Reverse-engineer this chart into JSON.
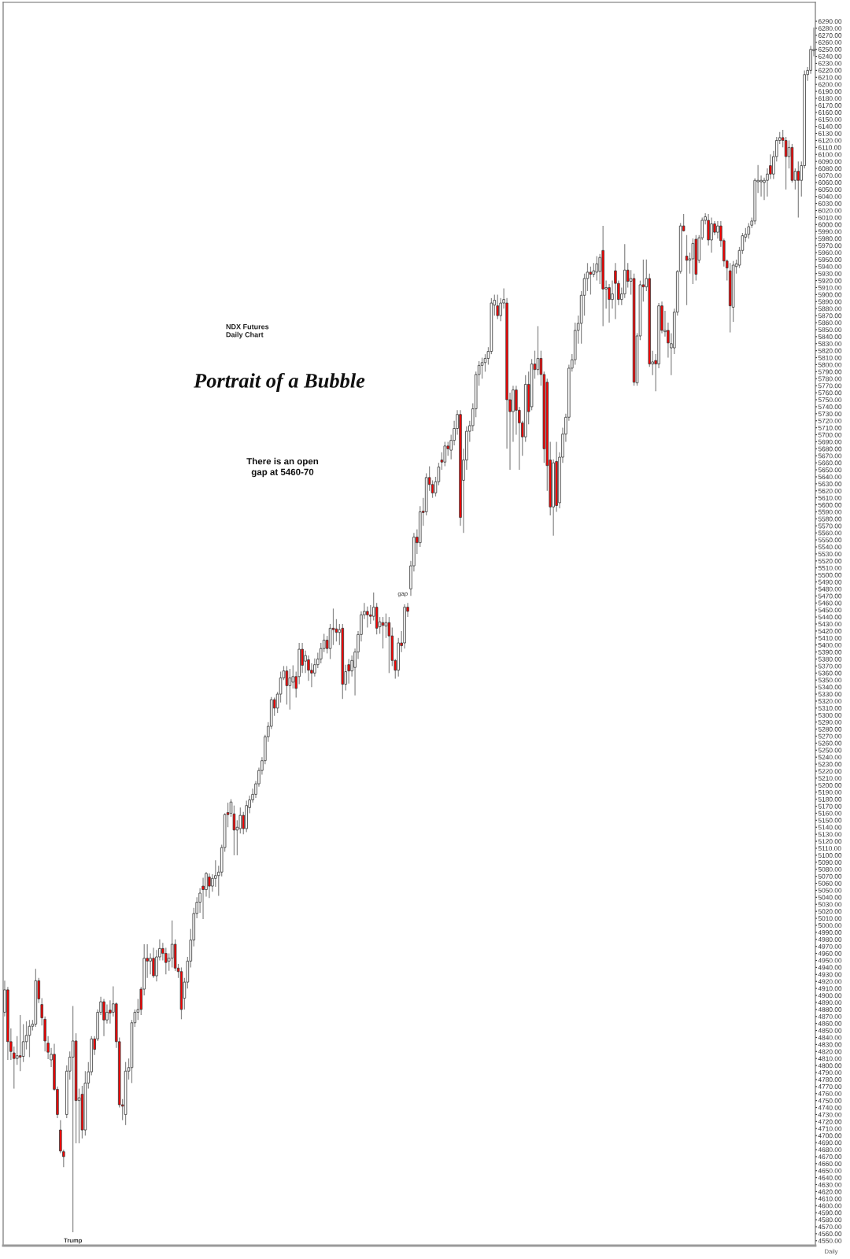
{
  "chart_data": {
    "type": "candlestick",
    "title": "Portrait of a Bubble",
    "subtitle": "NDX Futures\nDaily Chart",
    "annotations": [
      "There is an open\ngap at 5460-70",
      "gap",
      "Trump",
      "Daily"
    ],
    "categories": [
      null,
      null,
      null,
      null,
      null,
      null,
      null,
      null,
      null,
      null,
      null,
      null,
      null,
      null,
      null,
      null,
      null,
      null,
      null,
      null,
      null,
      null,
      null,
      null,
      null,
      null,
      null,
      null,
      null,
      null,
      null,
      null,
      null,
      null,
      null,
      null,
      null,
      null,
      null,
      null,
      null,
      null,
      null,
      null,
      null,
      null,
      null,
      null,
      null,
      null,
      null,
      null,
      null,
      null,
      null,
      null,
      null,
      null,
      null,
      null,
      null,
      null,
      null,
      null,
      null,
      null,
      null,
      null,
      null,
      null,
      null,
      null,
      null,
      null,
      null,
      null,
      null,
      null,
      null,
      null,
      null,
      null,
      null,
      null,
      null,
      null,
      null,
      null,
      null,
      null,
      null,
      null,
      null,
      null,
      null,
      null,
      null,
      null,
      null,
      null,
      null,
      null,
      null,
      null,
      null,
      null,
      null,
      null,
      null,
      null,
      null,
      null,
      null,
      null,
      null,
      null,
      null,
      null,
      null,
      null,
      null,
      null,
      null,
      null,
      null,
      null,
      null,
      null,
      null,
      null,
      null,
      null,
      null,
      null,
      null,
      null,
      null,
      null,
      null,
      null,
      null,
      null,
      null,
      null,
      null,
      null,
      null,
      null,
      null,
      null,
      null,
      null,
      null,
      null,
      null,
      null,
      null,
      null,
      null,
      null,
      null,
      null,
      null,
      null,
      null,
      null,
      null,
      null,
      null,
      null,
      null,
      null,
      null,
      null,
      null,
      null,
      null,
      null,
      null,
      null,
      null,
      null,
      null,
      null,
      null,
      null,
      null,
      null,
      null,
      null,
      null,
      null,
      null,
      null,
      null,
      null,
      null,
      null,
      null,
      null,
      null,
      null,
      null,
      null,
      null,
      null,
      null,
      null,
      null,
      null,
      null,
      null,
      null,
      null,
      null,
      null,
      null,
      null,
      null,
      null,
      null,
      null,
      null,
      null,
      null,
      null,
      null,
      null,
      null,
      null,
      null,
      null,
      null,
      null,
      null,
      null,
      null,
      null,
      null,
      null,
      null,
      null,
      null,
      null,
      null,
      null,
      null,
      null,
      null,
      null,
      null,
      null,
      null,
      null,
      null,
      null,
      null,
      null,
      null,
      null,
      null,
      null
    ],
    "ohlc": [
      [
        4876,
        4921,
        4870,
        4908
      ],
      [
        4908,
        4912,
        4808,
        4834
      ],
      [
        4834,
        4853,
        4808,
        4820
      ],
      [
        4818,
        4827,
        4767,
        4810
      ],
      [
        4810,
        4842,
        4801,
        4814
      ],
      [
        4814,
        4872,
        4792,
        4812
      ],
      [
        4813,
        4859,
        4805,
        4834
      ],
      [
        4834,
        4863,
        4823,
        4843
      ],
      [
        4843,
        4865,
        4812,
        4856
      ],
      [
        4856,
        4865,
        4850,
        4859
      ],
      [
        4859,
        4938,
        4855,
        4921
      ],
      [
        4921,
        4925,
        4889,
        4895
      ],
      [
        4887,
        4896,
        4857,
        4868
      ],
      [
        4866,
        4870,
        4820,
        4835
      ],
      [
        4832,
        4842,
        4809,
        4819
      ],
      [
        4808,
        4825,
        4798,
        4816
      ],
      [
        4816,
        4831,
        4764,
        4766
      ],
      [
        4766,
        4770,
        4725,
        4730
      ],
      [
        4708,
        4722,
        4675,
        4678
      ],
      [
        4677,
        4680,
        4655,
        4670
      ],
      [
        4730,
        4800,
        4725,
        4792
      ],
      [
        4792,
        4820,
        4780,
        4812
      ],
      [
        4812,
        4885,
        4562,
        4835
      ],
      [
        4835,
        4846,
        4689,
        4750
      ],
      [
        4750,
        4767,
        4689,
        4754
      ],
      [
        4759,
        4771,
        4696,
        4708
      ],
      [
        4708,
        4792,
        4700,
        4775
      ],
      [
        4775,
        4805,
        4767,
        4791
      ],
      [
        4791,
        4842,
        4786,
        4838
      ],
      [
        4838,
        4842,
        4815,
        4823
      ],
      [
        4838,
        4880,
        4835,
        4876
      ],
      [
        4876,
        4898,
        4872,
        4891
      ],
      [
        4891,
        4895,
        4842,
        4865
      ],
      [
        4865,
        4887,
        4860,
        4876
      ],
      [
        4879,
        4893,
        4860,
        4875
      ],
      [
        4876,
        4913,
        4870,
        4888
      ],
      [
        4888,
        4890,
        4825,
        4834
      ],
      [
        4834,
        4840,
        4740,
        4744
      ],
      [
        4744,
        4752,
        4722,
        4742
      ],
      [
        4730,
        4805,
        4715,
        4792
      ],
      [
        4792,
        4810,
        4780,
        4797
      ],
      [
        4797,
        4865,
        4775,
        4861
      ],
      [
        4861,
        4880,
        4855,
        4876
      ],
      [
        4876,
        4895,
        4865,
        4880
      ],
      [
        4909,
        4912,
        4872,
        4880
      ],
      [
        4909,
        4973,
        4900,
        4953
      ],
      [
        4953,
        4973,
        4925,
        4949
      ],
      [
        4949,
        4960,
        4930,
        4953
      ],
      [
        4953,
        4968,
        4925,
        4928
      ],
      [
        4928,
        4965,
        4920,
        4955
      ],
      [
        4955,
        4980,
        4950,
        4967
      ],
      [
        4967,
        4975,
        4950,
        4960
      ],
      [
        4960,
        4968,
        4930,
        4947
      ],
      [
        4949,
        4960,
        4935,
        4953
      ],
      [
        4953,
        5007,
        4940,
        4973
      ],
      [
        4973,
        4980,
        4935,
        4939
      ],
      [
        4939,
        4945,
        4925,
        4934
      ],
      [
        4934,
        4940,
        4866,
        4880
      ],
      [
        4896,
        4925,
        4880,
        4919
      ],
      [
        4919,
        4955,
        4910,
        4949
      ],
      [
        4949,
        4995,
        4940,
        4979
      ],
      [
        4979,
        5025,
        4970,
        5017
      ],
      [
        5017,
        5040,
        5010,
        5033
      ],
      [
        5033,
        5053,
        5018,
        5046
      ],
      [
        5056,
        5068,
        5009,
        5051
      ],
      [
        5051,
        5076,
        5041,
        5074
      ],
      [
        5069,
        5074,
        5039,
        5056
      ],
      [
        5056,
        5073,
        5048,
        5067
      ],
      [
        5067,
        5093,
        5055,
        5071
      ],
      [
        5071,
        5085,
        5042,
        5076
      ],
      [
        5076,
        5115,
        5070,
        5111
      ],
      [
        5111,
        5160,
        5105,
        5158
      ],
      [
        5161,
        5175,
        5140,
        5158
      ],
      [
        5160,
        5180,
        5155,
        5176
      ],
      [
        5159,
        5171,
        5100,
        5136
      ],
      [
        5136,
        5150,
        5100,
        5140
      ],
      [
        5138,
        5168,
        5131,
        5157
      ],
      [
        5157,
        5162,
        5130,
        5138
      ],
      [
        5138,
        5178,
        5133,
        5171
      ],
      [
        5168,
        5185,
        5160,
        5179
      ],
      [
        5179,
        5195,
        5175,
        5187
      ],
      [
        5187,
        5206,
        5182,
        5202
      ],
      [
        5202,
        5225,
        5198,
        5221
      ],
      [
        5221,
        5240,
        5215,
        5235
      ],
      [
        5235,
        5272,
        5230,
        5269
      ],
      [
        5269,
        5290,
        5262,
        5284
      ],
      [
        5284,
        5326,
        5280,
        5322
      ],
      [
        5322,
        5325,
        5299,
        5310
      ],
      [
        5310,
        5333,
        5303,
        5330
      ],
      [
        5330,
        5362,
        5318,
        5353
      ],
      [
        5353,
        5370,
        5350,
        5363
      ],
      [
        5363,
        5370,
        5315,
        5342
      ],
      [
        5342,
        5366,
        5308,
        5353
      ],
      [
        5347,
        5371,
        5338,
        5355
      ],
      [
        5355,
        5362,
        5325,
        5338
      ],
      [
        5355,
        5403,
        5344,
        5394
      ],
      [
        5394,
        5403,
        5360,
        5371
      ],
      [
        5377,
        5392,
        5360,
        5385
      ],
      [
        5379,
        5385,
        5349,
        5364
      ],
      [
        5364,
        5374,
        5340,
        5360
      ],
      [
        5360,
        5381,
        5355,
        5372
      ],
      [
        5372,
        5389,
        5367,
        5380
      ],
      [
        5380,
        5403,
        5374,
        5395
      ],
      [
        5395,
        5416,
        5390,
        5407
      ],
      [
        5407,
        5413,
        5388,
        5395
      ],
      [
        5395,
        5430,
        5380,
        5424
      ],
      [
        5424,
        5452,
        5400,
        5422
      ],
      [
        5423,
        5437,
        5405,
        5418
      ],
      [
        5418,
        5430,
        5400,
        5422
      ],
      [
        5424,
        5430,
        5323,
        5344
      ],
      [
        5344,
        5372,
        5335,
        5362
      ],
      [
        5372,
        5380,
        5345,
        5363
      ],
      [
        5363,
        5385,
        5355,
        5378
      ],
      [
        5368,
        5395,
        5328,
        5390
      ],
      [
        5390,
        5420,
        5380,
        5415
      ],
      [
        5415,
        5448,
        5405,
        5443
      ],
      [
        5443,
        5460,
        5437,
        5448
      ],
      [
        5448,
        5455,
        5425,
        5443
      ],
      [
        5443,
        5457,
        5430,
        5441
      ],
      [
        5441,
        5475,
        5435,
        5454
      ],
      [
        5454,
        5460,
        5415,
        5424
      ],
      [
        5426,
        5440,
        5416,
        5433
      ],
      [
        5432,
        5440,
        5395,
        5428
      ],
      [
        5427,
        5445,
        5410,
        5432
      ],
      [
        5432,
        5440,
        5360,
        5413
      ],
      [
        5413,
        5425,
        5370,
        5378
      ],
      [
        5378,
        5380,
        5352,
        5364
      ],
      [
        5364,
        5410,
        5355,
        5403
      ],
      [
        5403,
        5420,
        5390,
        5399
      ],
      [
        5403,
        5458,
        5395,
        5454
      ],
      [
        5454,
        5460,
        5440,
        5448
      ],
      [
        5480,
        5520,
        5470,
        5513
      ],
      [
        5513,
        5560,
        5505,
        5554
      ],
      [
        5554,
        5565,
        5530,
        5546
      ],
      [
        5546,
        5598,
        5540,
        5590
      ],
      [
        5591,
        5610,
        5570,
        5589
      ],
      [
        5590,
        5645,
        5585,
        5639
      ],
      [
        5639,
        5655,
        5620,
        5629
      ],
      [
        5629,
        5635,
        5610,
        5617
      ],
      [
        5617,
        5640,
        5612,
        5633
      ],
      [
        5633,
        5660,
        5628,
        5654
      ],
      [
        5664,
        5675,
        5650,
        5661
      ],
      [
        5661,
        5690,
        5655,
        5684
      ],
      [
        5684,
        5690,
        5670,
        5680
      ],
      [
        5678,
        5700,
        5665,
        5692
      ],
      [
        5692,
        5720,
        5685,
        5709
      ],
      [
        5709,
        5735,
        5700,
        5729
      ],
      [
        5729,
        5735,
        5570,
        5582
      ],
      [
        5635,
        5680,
        5560,
        5664
      ],
      [
        5664,
        5712,
        5650,
        5705
      ],
      [
        5705,
        5720,
        5690,
        5713
      ],
      [
        5713,
        5745,
        5705,
        5737
      ],
      [
        5737,
        5790,
        5725,
        5786
      ],
      [
        5786,
        5805,
        5770,
        5799
      ],
      [
        5799,
        5810,
        5780,
        5803
      ],
      [
        5803,
        5815,
        5790,
        5809
      ],
      [
        5809,
        5825,
        5800,
        5819
      ],
      [
        5819,
        5895,
        5815,
        5888
      ],
      [
        5885,
        5900,
        5870,
        5892
      ],
      [
        5884,
        5900,
        5865,
        5870
      ],
      [
        5870,
        5895,
        5862,
        5888
      ],
      [
        5888,
        5909,
        5880,
        5893
      ],
      [
        5888,
        5895,
        5680,
        5750
      ],
      [
        5750,
        5760,
        5650,
        5733
      ],
      [
        5733,
        5770,
        5690,
        5764
      ],
      [
        5764,
        5770,
        5700,
        5735
      ],
      [
        5735,
        5740,
        5650,
        5717
      ],
      [
        5717,
        5720,
        5670,
        5697
      ],
      [
        5697,
        5785,
        5690,
        5772
      ],
      [
        5772,
        5790,
        5715,
        5733
      ],
      [
        5740,
        5808,
        5735,
        5801
      ],
      [
        5801,
        5820,
        5780,
        5793
      ],
      [
        5793,
        5855,
        5785,
        5809
      ],
      [
        5809,
        5820,
        5770,
        5786
      ],
      [
        5786,
        5790,
        5660,
        5680
      ],
      [
        5775,
        5780,
        5620,
        5656
      ],
      [
        5664,
        5690,
        5585,
        5597
      ],
      [
        5597,
        5665,
        5556,
        5660
      ],
      [
        5662,
        5690,
        5590,
        5599
      ],
      [
        5603,
        5675,
        5595,
        5668
      ],
      [
        5668,
        5710,
        5660,
        5701
      ],
      [
        5701,
        5730,
        5690,
        5725
      ],
      [
        5725,
        5800,
        5720,
        5795
      ],
      [
        5795,
        5815,
        5790,
        5807
      ],
      [
        5807,
        5860,
        5800,
        5849
      ],
      [
        5849,
        5870,
        5830,
        5859
      ],
      [
        5859,
        5905,
        5830,
        5899
      ],
      [
        5899,
        5930,
        5870,
        5923
      ],
      [
        5923,
        5945,
        5905,
        5932
      ],
      [
        5932,
        5940,
        5900,
        5929
      ],
      [
        5929,
        5945,
        5925,
        5934
      ],
      [
        5932,
        5955,
        5920,
        5944
      ],
      [
        5933,
        5958,
        5915,
        5953
      ],
      [
        5963,
        5998,
        5855,
        5908
      ],
      [
        5908,
        5920,
        5880,
        5910
      ],
      [
        5910,
        5915,
        5860,
        5893
      ],
      [
        5893,
        5920,
        5880,
        5901
      ],
      [
        5934,
        5945,
        5865,
        5916
      ],
      [
        5916,
        5920,
        5885,
        5893
      ],
      [
        5893,
        5910,
        5885,
        5901
      ],
      [
        5901,
        5972,
        5895,
        5935
      ],
      [
        5935,
        5945,
        5910,
        5919
      ],
      [
        5919,
        5935,
        5900,
        5923
      ],
      [
        5923,
        5930,
        5770,
        5775
      ],
      [
        5774,
        5845,
        5770,
        5841
      ],
      [
        5841,
        5920,
        5835,
        5914
      ],
      [
        5914,
        5950,
        5890,
        5911
      ],
      [
        5911,
        5950,
        5905,
        5923
      ],
      [
        5923,
        5930,
        5797,
        5801
      ],
      [
        5801,
        5820,
        5785,
        5804
      ],
      [
        5806,
        5815,
        5762,
        5801
      ],
      [
        5801,
        5888,
        5795,
        5884
      ],
      [
        5884,
        5890,
        5845,
        5849
      ],
      [
        5847,
        5877,
        5840,
        5849
      ],
      [
        5849,
        5860,
        5810,
        5831
      ],
      [
        5824,
        5845,
        5785,
        5830
      ],
      [
        5824,
        5880,
        5815,
        5875
      ],
      [
        5875,
        5935,
        5870,
        5933
      ],
      [
        5933,
        6002,
        5930,
        5998
      ],
      [
        5998,
        6015,
        5990,
        5991
      ],
      [
        5955,
        5985,
        5885,
        5949
      ],
      [
        5949,
        5960,
        5930,
        5951
      ],
      [
        5951,
        5980,
        5915,
        5973
      ],
      [
        5979,
        5985,
        5920,
        5929
      ],
      [
        5949,
        5985,
        5945,
        5981
      ],
      [
        5981,
        6010,
        5978,
        6006
      ],
      [
        6006,
        6016,
        6000,
        6011
      ],
      [
        6006,
        6015,
        5970,
        5978
      ],
      [
        5978,
        6010,
        5960,
        6001
      ],
      [
        6001,
        6005,
        5985,
        5989
      ],
      [
        5989,
        6005,
        5980,
        5998
      ],
      [
        5998,
        6005,
        5968,
        5977
      ],
      [
        5977,
        5980,
        5940,
        5948
      ],
      [
        5948,
        5950,
        5920,
        5938
      ],
      [
        5934,
        5945,
        5846,
        5884
      ],
      [
        5882,
        5948,
        5861,
        5942
      ],
      [
        5940,
        5950,
        5930,
        5944
      ],
      [
        5942,
        5968,
        5938,
        5963
      ],
      [
        5963,
        5988,
        5958,
        5984
      ],
      [
        5982,
        5995,
        5975,
        5986
      ],
      [
        5986,
        6002,
        5980,
        5997
      ],
      [
        5999,
        6010,
        5995,
        6005
      ],
      [
        6005,
        6066,
        6000,
        6063
      ],
      [
        6061,
        6085,
        6045,
        6063
      ],
      [
        6061,
        6070,
        6040,
        6063
      ],
      [
        6060,
        6067,
        6035,
        6063
      ],
      [
        6063,
        6080,
        6040,
        6072
      ],
      [
        6084,
        6100,
        6065,
        6072
      ],
      [
        6072,
        6105,
        6065,
        6097
      ],
      [
        6097,
        6125,
        6090,
        6120
      ],
      [
        6120,
        6132,
        6115,
        6124
      ],
      [
        6124,
        6135,
        6110,
        6120
      ],
      [
        6120,
        6125,
        6050,
        6097
      ],
      [
        6097,
        6120,
        6080,
        6110
      ],
      [
        6110,
        6115,
        6060,
        6063
      ],
      [
        6063,
        6080,
        6050,
        6076
      ],
      [
        6076,
        6090,
        6010,
        6063
      ],
      [
        6063,
        6090,
        6040,
        6084
      ],
      [
        6084,
        6220,
        6080,
        6214
      ],
      [
        6214,
        6225,
        6205,
        6220
      ],
      [
        6220,
        6255,
        6215,
        6250
      ],
      [
        6248,
        6281,
        6240,
        6250
      ]
    ],
    "colors": [
      "#ffffff",
      "#ff0000",
      "#ff0000",
      "#ff0000",
      "#ffffff",
      "#ff0000",
      "#ffffff",
      "#ffffff",
      "#ffffff",
      "#ffffff",
      "#ffffff",
      "#ff0000",
      "#ff0000",
      "#ff0000",
      "#ff0000",
      "#ffffff",
      "#ff0000",
      "#ff0000",
      "#ff0000",
      "#ff0000",
      "#ffffff",
      "#ffffff",
      "#ffffff",
      "#ff0000",
      "#ffffff",
      "#ff0000",
      "#ffffff",
      "#ffffff",
      "#ffffff",
      "#ff0000",
      "#ffffff",
      "#ffffff",
      "#ff0000",
      "#ffffff",
      "#ff0000",
      "#ffffff",
      "#ff0000",
      "#ff0000",
      "#ff0000",
      "#ffffff",
      "#ffffff",
      "#ffffff",
      "#ffffff",
      "#ffffff",
      "#ff0000",
      "#ffffff",
      "#ff0000",
      "#ffffff",
      "#ff0000",
      "#ffffff",
      "#ffffff",
      "#ff0000",
      "#ff0000",
      "#ffffff",
      "#ffffff",
      "#ff0000",
      "#ff0000",
      "#ff0000",
      "#ffffff",
      "#ffffff",
      "#ffffff",
      "#ffffff",
      "#ffffff",
      "#ffffff",
      "#ff0000",
      "#ffffff",
      "#ff0000",
      "#ffffff",
      "#ffffff",
      "#ffffff",
      "#ffffff",
      "#ffffff",
      "#ff0000",
      "#ffffff",
      "#ff0000",
      "#ffffff",
      "#ffffff",
      "#ff0000",
      "#ffffff",
      "#ffffff",
      "#ffffff",
      "#ffffff",
      "#ffffff",
      "#ffffff",
      "#ffffff",
      "#ffffff",
      "#ffffff",
      "#ff0000",
      "#ffffff",
      "#ffffff",
      "#ffffff",
      "#ff0000",
      "#ffffff",
      "#ffffff",
      "#ff0000",
      "#ffffff",
      "#ff0000",
      "#ffffff",
      "#ff0000",
      "#ff0000",
      "#ffffff",
      "#ffffff",
      "#ffffff",
      "#ffffff",
      "#ff0000",
      "#ffffff",
      "#ff0000",
      "#ff0000",
      "#ffffff",
      "#ff0000",
      "#ffffff",
      "#ff0000",
      "#ffffff",
      "#ffffff",
      "#ffffff",
      "#ffffff",
      "#ffffff",
      "#ff0000",
      "#ff0000",
      "#ffffff",
      "#ff0000",
      "#ffffff",
      "#ff0000",
      "#ffffff",
      "#ff0000",
      "#ff0000",
      "#ff0000",
      "#ffffff",
      "#ff0000",
      "#ffffff",
      "#ff0000",
      "#ffffff",
      "#ffffff",
      "#ff0000",
      "#ffffff",
      "#ff0000",
      "#ffffff",
      "#ff0000",
      "#ff0000",
      "#ffffff",
      "#ffffff",
      "#ff0000",
      "#ffffff",
      "#ff0000",
      "#ffffff",
      "#ffffff",
      "#ffffff",
      "#ff0000",
      "#ffffff",
      "#ffffff",
      "#ffffff",
      "#ffffff",
      "#ffffff",
      "#ffffff",
      "#ffffff",
      "#ffffff",
      "#ffffff",
      "#ffffff",
      "#ffffff",
      "#ff0000",
      "#ffffff",
      "#ffffff",
      "#ff0000",
      "#ff0000",
      "#ffffff",
      "#ff0000",
      "#ff0000",
      "#ff0000",
      "#ffffff",
      "#ff0000",
      "#ffffff",
      "#ff0000",
      "#ffffff",
      "#ff0000",
      "#ff0000",
      "#ff0000",
      "#ff0000",
      "#ffffff",
      "#ff0000",
      "#ffffff",
      "#ffffff",
      "#ffffff",
      "#ffffff",
      "#ffffff",
      "#ffffff",
      "#ffffff",
      "#ffffff",
      "#ffffff",
      "#ffffff",
      "#ff0000",
      "#ffffff",
      "#ffffff",
      "#ffffff",
      "#ff0000",
      "#ffffff",
      "#ff0000",
      "#ffffff",
      "#ff0000",
      "#ff0000",
      "#ffffff",
      "#ffffff",
      "#ff0000",
      "#ffffff",
      "#ff0000",
      "#ffffff",
      "#ffffff",
      "#ff0000",
      "#ffffff",
      "#ff0000",
      "#ffffff",
      "#ff0000",
      "#ffffff",
      "#ff0000",
      "#ffffff",
      "#ff0000",
      "#ffffff",
      "#ffffff",
      "#ffffff",
      "#ffffff",
      "#ff0000",
      "#ff0000",
      "#ffffff",
      "#ffffff",
      "#ff0000",
      "#ffffff",
      "#ffffff",
      "#ffffff",
      "#ff0000",
      "#ffffff",
      "#ff0000",
      "#ffffff",
      "#ff0000",
      "#ff0000",
      "#ff0000",
      "#ff0000",
      "#ffffff",
      "#ffffff",
      "#ffffff",
      "#ffffff",
      "#ffffff",
      "#ffffff",
      "#ffffff",
      "#ffffff",
      "#ffffff",
      "#ffffff",
      "#ffffff",
      "#ffffff",
      "#ff0000",
      "#ffffff",
      "#ffffff",
      "#ffffff",
      "#ff0000",
      "#ff0000",
      "#ffffff",
      "#ff0000",
      "#ffffff",
      "#ff0000",
      "#ffffff",
      "#ffffff",
      "#ffffff",
      "#ffffff",
      "#ffffff"
    ],
    "ylim": [
      4543,
      6317
    ],
    "yticks": [
      {
        "value": 4550,
        "label": "4550.00"
      },
      {
        "value": 4560,
        "label": "4560.00"
      },
      {
        "value": 4570,
        "label": "4570.00"
      },
      {
        "value": 4580,
        "label": "4580.00"
      },
      {
        "value": 4590,
        "label": "4590.00"
      },
      {
        "value": 4600,
        "label": "4600.00"
      },
      {
        "value": 4610,
        "label": "4610.00"
      },
      {
        "value": 4620,
        "label": "4620.00"
      },
      {
        "value": 4630,
        "label": "4630.00"
      },
      {
        "value": 4640,
        "label": "4640.00"
      },
      {
        "value": 4650,
        "label": "4650.00"
      },
      {
        "value": 4660,
        "label": "4660.00"
      },
      {
        "value": 4670,
        "label": "4670.00"
      },
      {
        "value": 4680,
        "label": "4680.00"
      },
      {
        "value": 4690,
        "label": "4690.00"
      },
      {
        "value": 4700,
        "label": "4700.00"
      },
      {
        "value": 4710,
        "label": "4710.00"
      },
      {
        "value": 4720,
        "label": "4720.00"
      },
      {
        "value": 4730,
        "label": "4730.00"
      },
      {
        "value": 4740,
        "label": "4740.00"
      },
      {
        "value": 4750,
        "label": "4750.00"
      },
      {
        "value": 4760,
        "label": "4760.00"
      },
      {
        "value": 4770,
        "label": "4770.00"
      },
      {
        "value": 4780,
        "label": "4780.00"
      },
      {
        "value": 4790,
        "label": "4790.00"
      },
      {
        "value": 4800,
        "label": "4800.00"
      },
      {
        "value": 4810,
        "label": "4810.00"
      },
      {
        "value": 4820,
        "label": "4820.00"
      },
      {
        "value": 4830,
        "label": "4830.00"
      },
      {
        "value": 4840,
        "label": "4840.00"
      },
      {
        "value": 4850,
        "label": "4850.00"
      },
      {
        "value": 4860,
        "label": "4860.00"
      },
      {
        "value": 4870,
        "label": "4870.00"
      },
      {
        "value": 4880,
        "label": "4880.00"
      },
      {
        "value": 4890,
        "label": "4890.00"
      },
      {
        "value": 4900,
        "label": "4900.00"
      },
      {
        "value": 4910,
        "label": "4910.00"
      },
      {
        "value": 4920,
        "label": "4920.00"
      },
      {
        "value": 4930,
        "label": "4930.00"
      },
      {
        "value": 4940,
        "label": "4940.00"
      },
      {
        "value": 4950,
        "label": "4950.00"
      },
      {
        "value": 4960,
        "label": "4960.00"
      },
      {
        "value": 4970,
        "label": "4970.00"
      },
      {
        "value": 4980,
        "label": "4980.00"
      },
      {
        "value": 4990,
        "label": "4990.00"
      },
      {
        "value": 5000,
        "label": "5000.00"
      },
      {
        "value": 5010,
        "label": "5010.00"
      },
      {
        "value": 5020,
        "label": "5020.00"
      },
      {
        "value": 5030,
        "label": "5030.00"
      },
      {
        "value": 5040,
        "label": "5040.00"
      },
      {
        "value": 5050,
        "label": "5050.00"
      },
      {
        "value": 5060,
        "label": "5060.00"
      },
      {
        "value": 5070,
        "label": "5070.00"
      },
      {
        "value": 5080,
        "label": "5080.00"
      },
      {
        "value": 5090,
        "label": "5090.00"
      },
      {
        "value": 5100,
        "label": "5100.00"
      },
      {
        "value": 5110,
        "label": "5110.00"
      },
      {
        "value": 5120,
        "label": "5120.00"
      },
      {
        "value": 5130,
        "label": "5130.00"
      },
      {
        "value": 5140,
        "label": "5140.00"
      },
      {
        "value": 5150,
        "label": "5150.00"
      },
      {
        "value": 5160,
        "label": "5160.00"
      },
      {
        "value": 5170,
        "label": "5170.00"
      },
      {
        "value": 5180,
        "label": "5180.00"
      },
      {
        "value": 5190,
        "label": "5190.00"
      },
      {
        "value": 5200,
        "label": "5200.00"
      },
      {
        "value": 5210,
        "label": "5210.00"
      },
      {
        "value": 5220,
        "label": "5220.00"
      },
      {
        "value": 5230,
        "label": "5230.00"
      },
      {
        "value": 5240,
        "label": "5240.00"
      },
      {
        "value": 5250,
        "label": "5250.00"
      },
      {
        "value": 5260,
        "label": "5260.00"
      },
      {
        "value": 5270,
        "label": "5270.00"
      },
      {
        "value": 5280,
        "label": "5280.00"
      },
      {
        "value": 5290,
        "label": "5290.00"
      },
      {
        "value": 5300,
        "label": "5300.00"
      },
      {
        "value": 5310,
        "label": "5310.00"
      },
      {
        "value": 5320,
        "label": "5320.00"
      },
      {
        "value": 5330,
        "label": "5330.00"
      },
      {
        "value": 5340,
        "label": "5340.00"
      },
      {
        "value": 5350,
        "label": "5350.00"
      },
      {
        "value": 5360,
        "label": "5360.00"
      },
      {
        "value": 5370,
        "label": "5370.00"
      },
      {
        "value": 5380,
        "label": "5380.00"
      },
      {
        "value": 5390,
        "label": "5390.00"
      },
      {
        "value": 5400,
        "label": "5400.00"
      },
      {
        "value": 5410,
        "label": "5410.00"
      },
      {
        "value": 5420,
        "label": "5420.00"
      },
      {
        "value": 5430,
        "label": "5430.00"
      },
      {
        "value": 5440,
        "label": "5440.00"
      },
      {
        "value": 5450,
        "label": "5450.00"
      },
      {
        "value": 5460,
        "label": "5460.00"
      },
      {
        "value": 5470,
        "label": "5470.00"
      },
      {
        "value": 5480,
        "label": "5480.00"
      },
      {
        "value": 5490,
        "label": "5490.00"
      },
      {
        "value": 5500,
        "label": "5500.00"
      },
      {
        "value": 5510,
        "label": "5510.00"
      },
      {
        "value": 5520,
        "label": "5520.00"
      },
      {
        "value": 5530,
        "label": "5530.00"
      },
      {
        "value": 5540,
        "label": "5540.00"
      },
      {
        "value": 5550,
        "label": "5550.00"
      },
      {
        "value": 5560,
        "label": "5560.00"
      },
      {
        "value": 5570,
        "label": "5570.00"
      },
      {
        "value": 5580,
        "label": "5580.00"
      },
      {
        "value": 5590,
        "label": "5590.00"
      },
      {
        "value": 5600,
        "label": "5600.00"
      },
      {
        "value": 5610,
        "label": "5610.00"
      },
      {
        "value": 5620,
        "label": "5620.00"
      },
      {
        "value": 5630,
        "label": "5630.00"
      },
      {
        "value": 5640,
        "label": "5640.00"
      },
      {
        "value": 5650,
        "label": "5650.00"
      },
      {
        "value": 5660,
        "label": "5660.00"
      },
      {
        "value": 5670,
        "label": "5670.00"
      },
      {
        "value": 5680,
        "label": "5680.00"
      },
      {
        "value": 5690,
        "label": "5690.00"
      },
      {
        "value": 5700,
        "label": "5700.00"
      },
      {
        "value": 5710,
        "label": "5710.00"
      },
      {
        "value": 5720,
        "label": "5720.00"
      },
      {
        "value": 5730,
        "label": "5730.00"
      },
      {
        "value": 5740,
        "label": "5740.00"
      },
      {
        "value": 5750,
        "label": "5750.00"
      },
      {
        "value": 5760,
        "label": "5760.00"
      },
      {
        "value": 5770,
        "label": "5770.00"
      },
      {
        "value": 5780,
        "label": "5780.00"
      },
      {
        "value": 5790,
        "label": "5790.00"
      },
      {
        "value": 5800,
        "label": "5800.00"
      },
      {
        "value": 5810,
        "label": "5810.00"
      },
      {
        "value": 5820,
        "label": "5820.00"
      },
      {
        "value": 5830,
        "label": "5830.00"
      },
      {
        "value": 5840,
        "label": "5840.00"
      },
      {
        "value": 5850,
        "label": "5850.00"
      },
      {
        "value": 5860,
        "label": "5860.00"
      },
      {
        "value": 5870,
        "label": "5870.00"
      },
      {
        "value": 5880,
        "label": "5880.00"
      },
      {
        "value": 5890,
        "label": "5890.00"
      },
      {
        "value": 5900,
        "label": "5900.00"
      },
      {
        "value": 5910,
        "label": "5910.00"
      },
      {
        "value": 5920,
        "label": "5920.00"
      },
      {
        "value": 5930,
        "label": "5930.00"
      },
      {
        "value": 5940,
        "label": "5940.00"
      },
      {
        "value": 5950,
        "label": "5950.00"
      },
      {
        "value": 5960,
        "label": "5960.00"
      },
      {
        "value": 5970,
        "label": "5970.00"
      },
      {
        "value": 5980,
        "label": "5980.00"
      },
      {
        "value": 5990,
        "label": "5990.00"
      },
      {
        "value": 6000,
        "label": "6000.00"
      },
      {
        "value": 6010,
        "label": "6010.00"
      },
      {
        "value": 6020,
        "label": "6020.00"
      },
      {
        "value": 6030,
        "label": "6030.00"
      },
      {
        "value": 6040,
        "label": "6040.00"
      },
      {
        "value": 6050,
        "label": "6050.00"
      },
      {
        "value": 6060,
        "label": "6060.00"
      },
      {
        "value": 6070,
        "label": "6070.00"
      },
      {
        "value": 6080,
        "label": "6080.00"
      },
      {
        "value": 6090,
        "label": "6090.00"
      },
      {
        "value": 6100,
        "label": "6100.00"
      },
      {
        "value": 6110,
        "label": "6110.00"
      },
      {
        "value": 6120,
        "label": "6120.00"
      },
      {
        "value": 6130,
        "label": "6130.00"
      },
      {
        "value": 6140,
        "label": "6140.00"
      },
      {
        "value": 6150,
        "label": "6150.00"
      },
      {
        "value": 6160,
        "label": "6160.00"
      },
      {
        "value": 6170,
        "label": "6170.00"
      },
      {
        "value": 6180,
        "label": "6180.00"
      },
      {
        "value": 6190,
        "label": "6190.00"
      },
      {
        "value": 6200,
        "label": "6200.00"
      },
      {
        "value": 6210,
        "label": "6210.00"
      },
      {
        "value": 6220,
        "label": "6220.00"
      },
      {
        "value": 6230,
        "label": "6230.00"
      },
      {
        "value": 6240,
        "label": "6240.00"
      },
      {
        "value": 6250,
        "label": "6250.00"
      },
      {
        "value": 6260,
        "label": "6260.00"
      },
      {
        "value": 6270,
        "label": "6270.00"
      },
      {
        "value": 6280,
        "label": "6280.00"
      },
      {
        "value": 6290,
        "label": "6290.00"
      }
    ],
    "tick_labels": "y"
  }
}
